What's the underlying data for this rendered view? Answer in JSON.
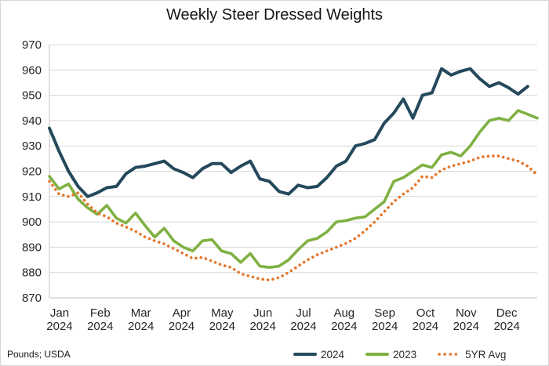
{
  "chart_data": {
    "type": "line",
    "title": "Weekly Steer Dressed Weights",
    "source_note": "Pounds; USDA",
    "unit": "Pounds",
    "x_axis": {
      "months": [
        {
          "abbr": "Jan",
          "year": "2024"
        },
        {
          "abbr": "Feb",
          "year": "2024"
        },
        {
          "abbr": "Mar",
          "year": "2024"
        },
        {
          "abbr": "Apr",
          "year": "2024"
        },
        {
          "abbr": "May",
          "year": "2024"
        },
        {
          "abbr": "Jun",
          "year": "2024"
        },
        {
          "abbr": "Jul",
          "year": "2024"
        },
        {
          "abbr": "Aug",
          "year": "2024"
        },
        {
          "abbr": "Sep",
          "year": "2024"
        },
        {
          "abbr": "Oct",
          "year": "2024"
        },
        {
          "abbr": "Nov",
          "year": "2024"
        },
        {
          "abbr": "Dec",
          "year": "2024"
        }
      ],
      "weeks_per_year": 52
    },
    "y_axis": {
      "min": 870,
      "max": 970,
      "step": 10,
      "tick_labels": [
        "970",
        "960",
        "950",
        "940",
        "930",
        "920",
        "910",
        "900",
        "890",
        "880",
        "870"
      ]
    },
    "grid": {
      "horizontal": true,
      "vertical": false
    },
    "legend_position": "bottom-right",
    "series": [
      {
        "name": "2024",
        "style": "solid",
        "color": "#24495c",
        "stroke_width": 4,
        "values": [
          937,
          928,
          920,
          914,
          910,
          911.5,
          913.5,
          914,
          919,
          921.5,
          922,
          923,
          924,
          921,
          919.5,
          917.5,
          921,
          923,
          923,
          919.5,
          922,
          924,
          917,
          916,
          912,
          911,
          914.5,
          913.5,
          914,
          917.5,
          922,
          924,
          930,
          931,
          932.5,
          939,
          943,
          948.5,
          941,
          950,
          951,
          960.5,
          958,
          959.5,
          960.5,
          956.5,
          953.5,
          955,
          953,
          950.5,
          953.5
        ]
      },
      {
        "name": "2023",
        "style": "solid",
        "color": "#7fb143",
        "stroke_width": 3.6,
        "values": [
          918,
          913,
          915,
          909,
          905.5,
          903,
          906.5,
          901.5,
          899.5,
          903.5,
          898.5,
          894,
          897.5,
          892.5,
          890,
          888.5,
          892.5,
          893,
          888.5,
          887.5,
          884,
          887.5,
          882.5,
          882,
          882.5,
          885,
          889,
          892.5,
          893.5,
          896,
          900,
          900.5,
          901.5,
          902,
          905,
          908,
          916,
          917.5,
          920,
          922.5,
          921.5,
          926.5,
          927.5,
          926,
          930,
          935.5,
          940,
          941,
          940,
          944,
          942.5,
          941
        ]
      },
      {
        "name": "5YR Avg",
        "style": "dotted",
        "color": "#e4762b",
        "stroke_width": 3.6,
        "values": [
          916,
          911,
          910,
          911.5,
          907,
          903.5,
          902,
          899.5,
          898,
          896.3,
          894,
          892.5,
          891.3,
          889.4,
          887.5,
          885.5,
          886,
          884.5,
          883,
          882,
          879.5,
          878.5,
          877.5,
          877,
          878,
          880,
          882.5,
          885,
          887,
          888.5,
          890,
          891.5,
          893.5,
          896.5,
          900,
          904,
          908,
          911,
          913.5,
          918,
          917.5,
          920.5,
          922,
          923,
          924,
          925.5,
          926,
          926,
          925,
          924,
          922,
          918.5
        ]
      }
    ],
    "colors": {
      "gridline": "#d9d9d9",
      "axis_line": "#bfbfbf",
      "tick_text": "#262626",
      "title_text": "#151515"
    }
  }
}
